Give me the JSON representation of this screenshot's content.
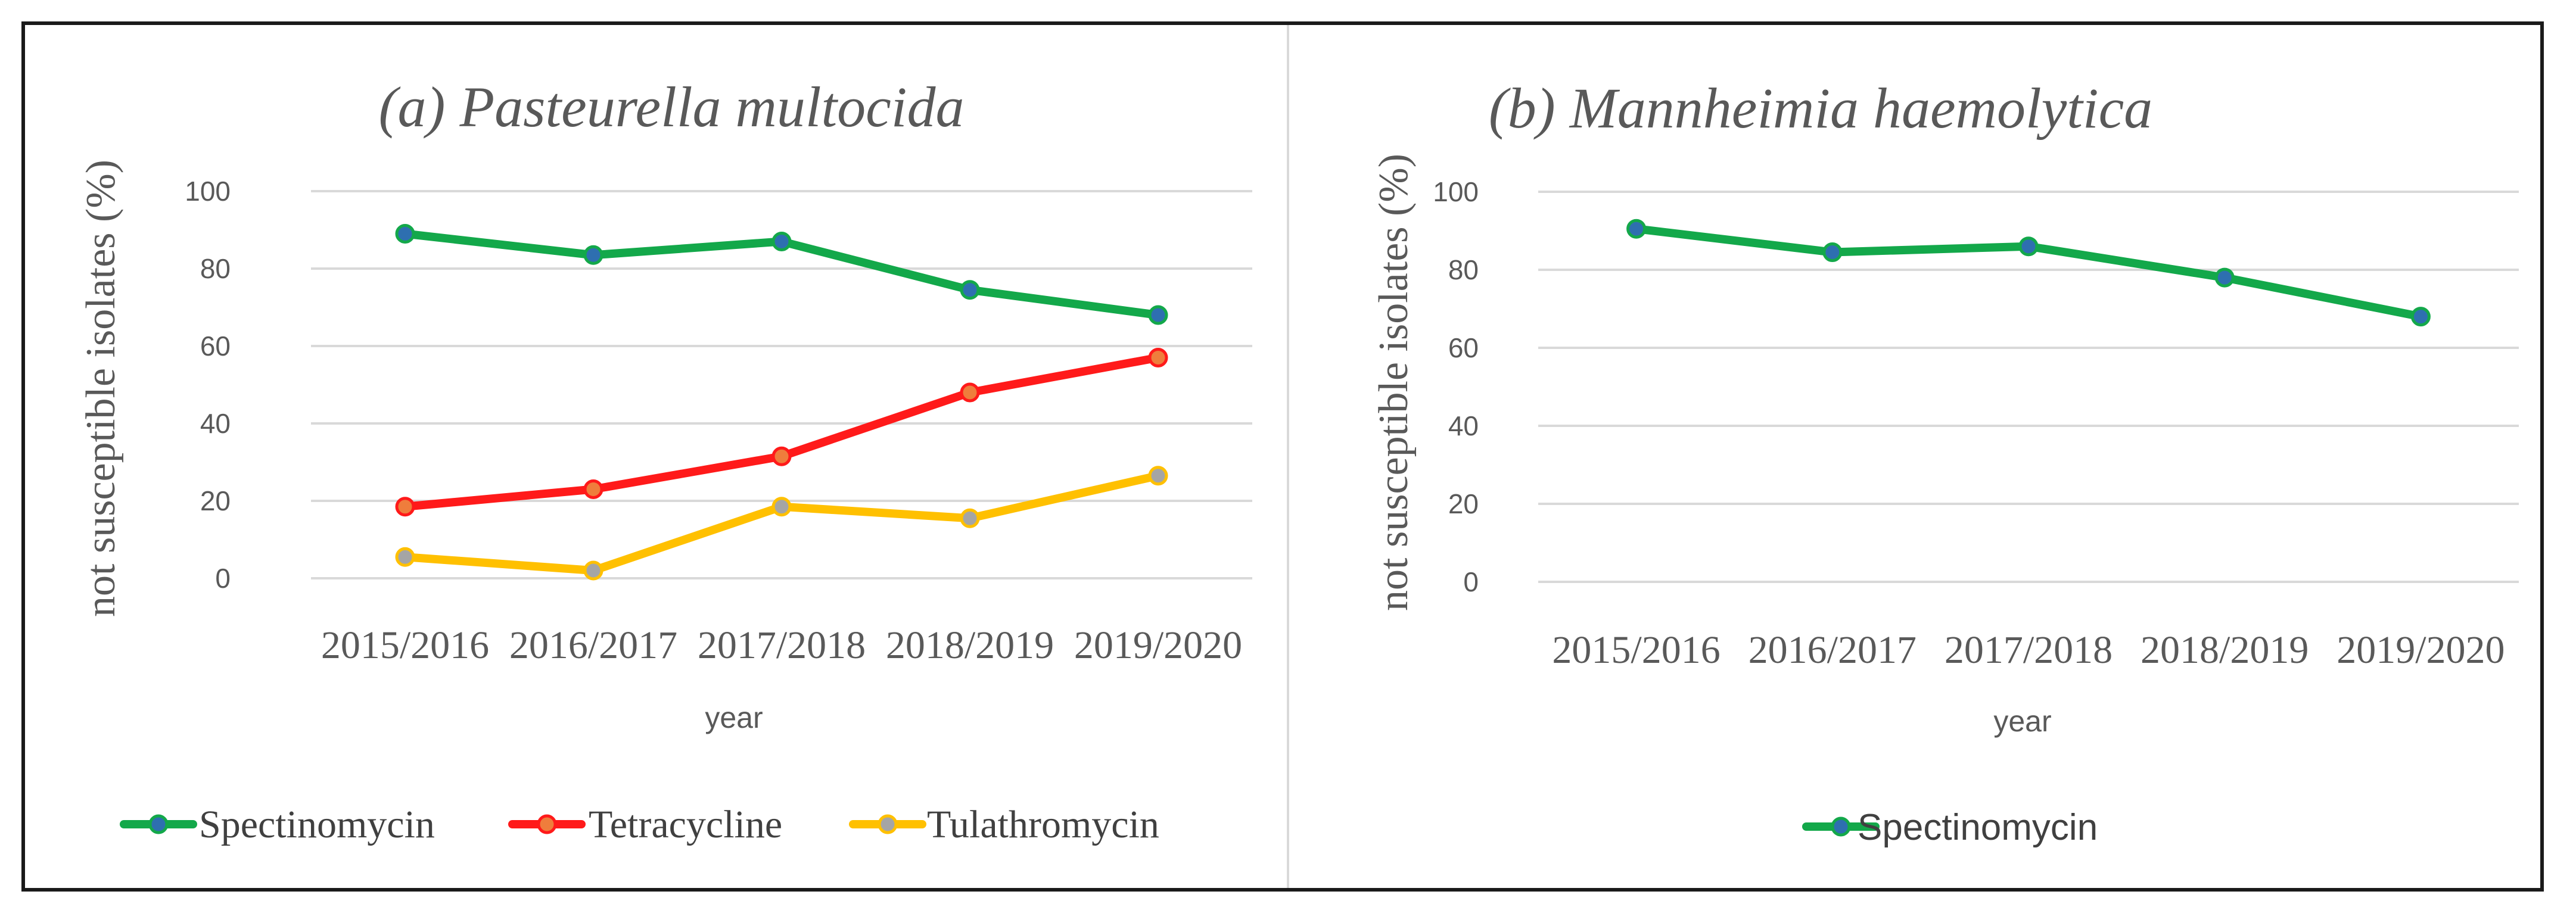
{
  "chart_data": [
    {
      "type": "line",
      "title": "(a) Pasteurella multocida",
      "xlabel": "year",
      "ylabel": "not susceptible isolates (%)",
      "ylim": [
        0,
        100
      ],
      "yticks": [
        "0",
        "20",
        "40",
        "60",
        "80",
        "100"
      ],
      "categories": [
        "2015/2016",
        "2016/2017",
        "2017/2018",
        "2018/2019",
        "2019/2020"
      ],
      "series": [
        {
          "name": "Spectinomycin",
          "values": [
            89,
            83.5,
            87,
            74.5,
            68
          ],
          "line_color": "#13a84a",
          "marker_color": "#2e6fb0"
        },
        {
          "name": "Tetracycline",
          "values": [
            18.5,
            23,
            31.5,
            48,
            57
          ],
          "line_color": "#ff1a1a",
          "marker_color": "#ef7d3c"
        },
        {
          "name": "Tulathromycin",
          "values": [
            5.5,
            2,
            18.5,
            15.5,
            26.5
          ],
          "line_color": "#ffc000",
          "marker_color": "#a5a5a5"
        }
      ],
      "legend_position": "bottom"
    },
    {
      "type": "line",
      "title": "(b) Mannheimia haemolytica",
      "xlabel": "year",
      "ylabel": "not susceptible isolates (%)",
      "ylim": [
        0,
        100
      ],
      "yticks": [
        "0",
        "20",
        "40",
        "60",
        "80",
        "100"
      ],
      "categories": [
        "2015/2016",
        "2016/2017",
        "2017/2018",
        "2018/2019",
        "2019/2020"
      ],
      "series": [
        {
          "name": "Spectinomycin",
          "values": [
            90.5,
            84.5,
            86,
            78,
            68
          ],
          "line_color": "#13a84a",
          "marker_color": "#2e6fb0"
        }
      ],
      "legend_position": "bottom"
    }
  ]
}
